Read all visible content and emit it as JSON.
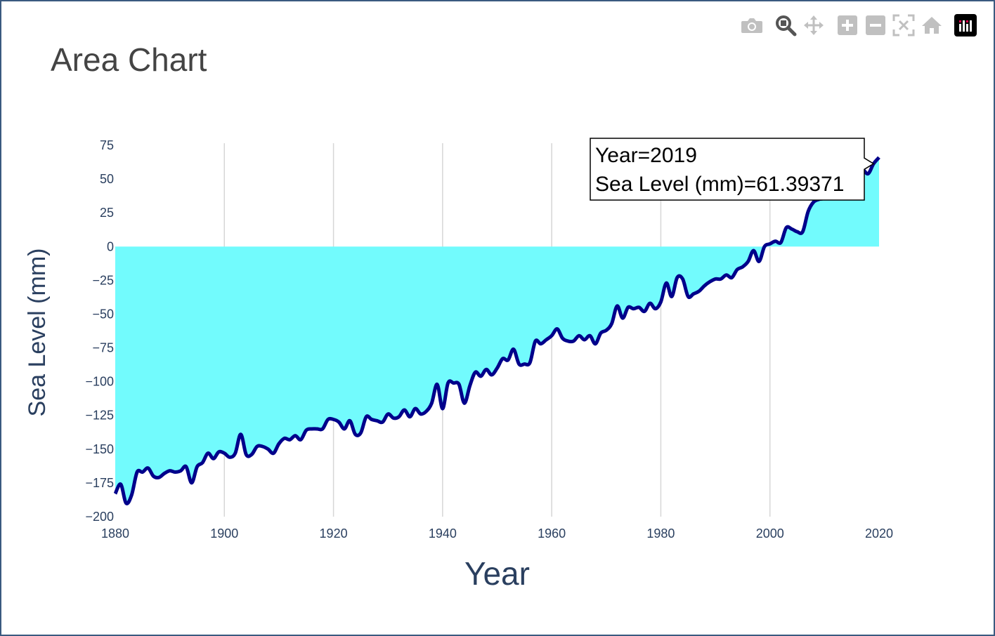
{
  "title": "Area Chart",
  "colors": {
    "fill": "#72fbfd",
    "line": "#00008b",
    "grid": "#d6d6d6",
    "tick_text": "#2a3f5f",
    "title_text": "#444444",
    "modebar_icon": "#c0c0c0",
    "frame_border": "#3a5a80"
  },
  "modebar": {
    "icons": [
      "camera-icon",
      "zoom-icon",
      "pan-icon",
      "zoom-in-icon",
      "zoom-out-icon",
      "autoscale-icon",
      "home-icon",
      "plotly-logo-icon"
    ]
  },
  "hover": {
    "line1": "Year=2019",
    "line2": "Sea Level (mm)=61.39371",
    "x": 2019,
    "y": 61.39371
  },
  "chart_data": {
    "type": "area",
    "title": "Area Chart",
    "xlabel": "Year",
    "ylabel": "Sea Level (mm)",
    "xlim": [
      1880,
      2020
    ],
    "ylim": [
      -200,
      75
    ],
    "x_ticks": [
      1880,
      1900,
      1920,
      1940,
      1960,
      1980,
      2000,
      2020
    ],
    "y_ticks": [
      75,
      50,
      25,
      0,
      -25,
      -50,
      -75,
      -100,
      -125,
      -150,
      -175,
      -200
    ],
    "grid": "vertical only",
    "series": [
      {
        "x": [
          1880,
          1881,
          1882,
          1883,
          1884,
          1885,
          1886,
          1887,
          1888,
          1889,
          1890,
          1891,
          1892,
          1893,
          1894,
          1895,
          1896,
          1897,
          1898,
          1899,
          1900,
          1901,
          1902,
          1903,
          1904,
          1905,
          1906,
          1907,
          1908,
          1909,
          1910,
          1911,
          1912,
          1913,
          1914,
          1915,
          1916,
          1917,
          1918,
          1919,
          1920,
          1921,
          1922,
          1923,
          1924,
          1925,
          1926,
          1927,
          1928,
          1929,
          1930,
          1931,
          1932,
          1933,
          1934,
          1935,
          1936,
          1937,
          1938,
          1939,
          1940,
          1941,
          1942,
          1943,
          1944,
          1945,
          1946,
          1947,
          1948,
          1949,
          1950,
          1951,
          1952,
          1953,
          1954,
          1955,
          1956,
          1957,
          1958,
          1959,
          1960,
          1961,
          1962,
          1963,
          1964,
          1965,
          1966,
          1967,
          1968,
          1969,
          1970,
          1971,
          1972,
          1973,
          1974,
          1975,
          1976,
          1977,
          1978,
          1979,
          1980,
          1981,
          1982,
          1983,
          1984,
          1985,
          1986,
          1987,
          1988,
          1989,
          1990,
          1991,
          1992,
          1993,
          1994,
          1995,
          1996,
          1997,
          1998,
          1999,
          2000,
          2001,
          2002,
          2003,
          2004,
          2005,
          2006,
          2007,
          2008,
          2009,
          2010,
          2011,
          2012,
          2013,
          2014,
          2015,
          2016,
          2017,
          2018,
          2019,
          2020
        ],
        "y": [
          -183,
          -176,
          -190,
          -184,
          -167,
          -167,
          -164,
          -170,
          -171,
          -168,
          -166,
          -167,
          -166,
          -163,
          -175,
          -163,
          -160,
          -153,
          -157,
          -152,
          -153,
          -156,
          -153,
          -139,
          -154,
          -154,
          -148,
          -148,
          -150,
          -153,
          -146,
          -142,
          -143,
          -140,
          -143,
          -136,
          -135,
          -135,
          -135,
          -128,
          -128,
          -130,
          -135,
          -129,
          -139,
          -138,
          -126,
          -128,
          -129,
          -130,
          -124,
          -127,
          -126,
          -121,
          -126,
          -120,
          -124,
          -122,
          -116,
          -102,
          -120,
          -101,
          -101,
          -102,
          -116,
          -103,
          -93,
          -96,
          -91,
          -95,
          -90,
          -83,
          -84,
          -76,
          -87,
          -87,
          -86,
          -70,
          -72,
          -69,
          -66,
          -61,
          -68,
          -70,
          -70,
          -66,
          -69,
          -66,
          -72,
          -64,
          -62,
          -57,
          -44,
          -53,
          -45,
          -46,
          -45,
          -48,
          -42,
          -46,
          -41,
          -27,
          -37,
          -23,
          -24,
          -37,
          -35,
          -33,
          -29,
          -26,
          -24,
          -24,
          -21,
          -23,
          -17,
          -15,
          -11,
          -3,
          -11,
          0,
          2,
          4,
          3,
          14,
          13,
          11,
          11,
          26,
          33,
          35,
          36,
          41,
          43,
          48,
          51,
          52,
          56,
          57,
          54,
          61.39371,
          66
        ]
      }
    ]
  }
}
